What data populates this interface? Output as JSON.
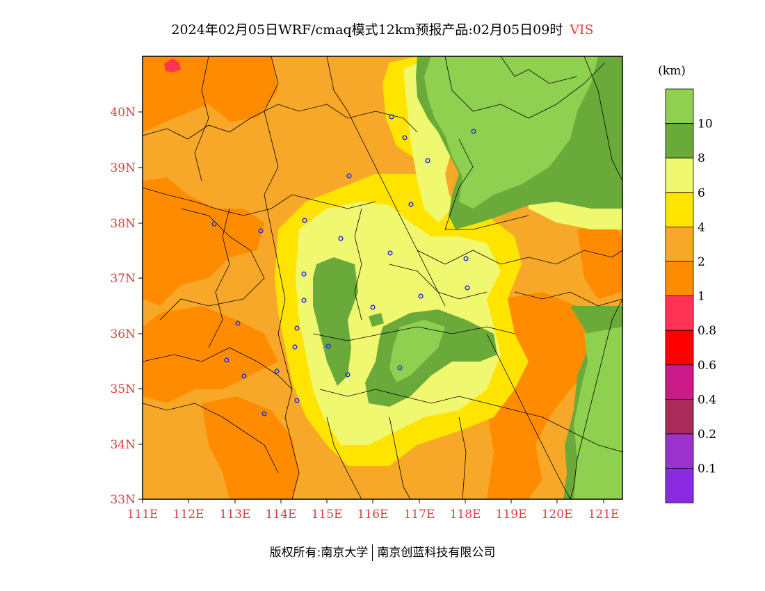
{
  "title": {
    "main": "2024年02月05日WRF/cmaq模式12km预报产品:02月05日09时",
    "variable": "VIS"
  },
  "map": {
    "lat_labels": [
      "40N",
      "39N",
      "38N",
      "37N",
      "36N",
      "35N",
      "34N",
      "33N"
    ],
    "lon_labels": [
      "111E",
      "112E",
      "113E",
      "114E",
      "115E",
      "116E",
      "117E",
      "118E",
      "119E",
      "120E",
      "121E"
    ]
  },
  "legend": {
    "unit": "(km)",
    "levels": [
      {
        "color": "#90d050"
      },
      {
        "color": "#6aaa3a",
        "label": "10"
      },
      {
        "color": "#f0f870",
        "label": "8"
      },
      {
        "color": "#ffe400",
        "label": "6"
      },
      {
        "color": "#f8a828",
        "label": "4"
      },
      {
        "color": "#ff8c00",
        "label": "2"
      },
      {
        "color": "#ff3355",
        "label": "1"
      },
      {
        "color": "#ff0000",
        "label": "0.8"
      },
      {
        "color": "#cc1a88",
        "label": "0.6"
      },
      {
        "color": "#aa2a5a",
        "label": "0.4"
      },
      {
        "color": "#9933cc",
        "label": "0.2"
      },
      {
        "color": "#8a2be2",
        "label": "0.1"
      }
    ]
  },
  "footer": {
    "left": "版权所有:南京大学",
    "right": "南京创蓝科技有限公司"
  }
}
